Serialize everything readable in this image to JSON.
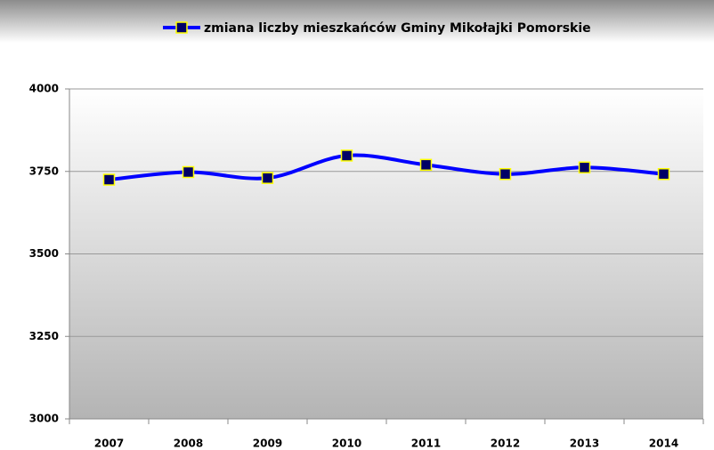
{
  "chart_data": {
    "type": "line",
    "categories": [
      "2007",
      "2008",
      "2009",
      "2010",
      "2011",
      "2012",
      "2013",
      "2014"
    ],
    "series": [
      {
        "name": "zmiana liczby mieszkańców Gminy Mikołajki Pomorskie",
        "color": "#0000ff",
        "marker_color": "#000066",
        "marker_edge": "#ffff00",
        "values": [
          3725,
          3748,
          3730,
          3798,
          3770,
          3742,
          3762,
          3742
        ]
      }
    ],
    "ylim": [
      3000,
      4000
    ],
    "yticks": [
      3000,
      3250,
      3500,
      3750,
      4000
    ],
    "grid": true,
    "legend": "top",
    "smooth": true
  }
}
